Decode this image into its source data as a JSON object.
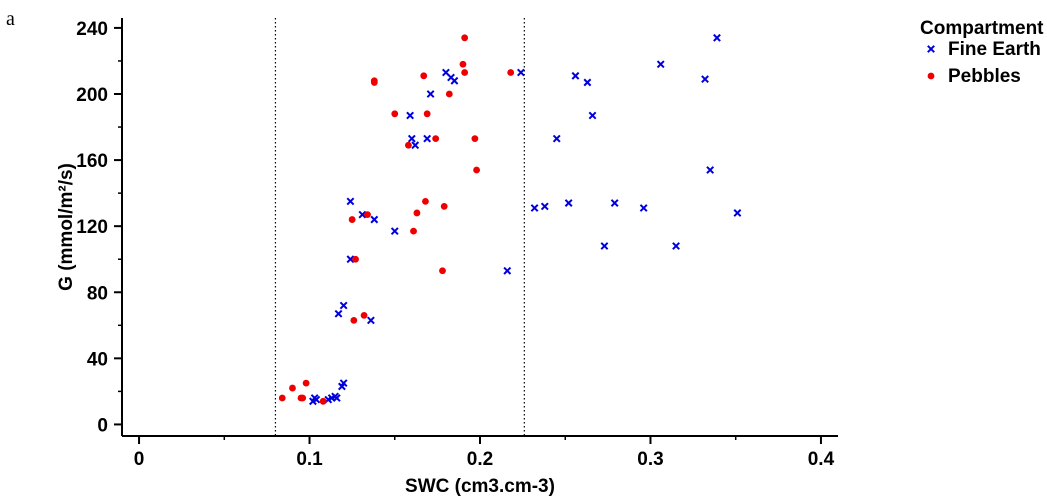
{
  "panel_label": "a",
  "chart_data": {
    "type": "scatter",
    "xlabel": "SWC (cm3.cm-3)",
    "ylabel": "G (mmol/m²/s)",
    "xlim": [
      -0.01,
      0.41
    ],
    "ylim": [
      -7,
      246
    ],
    "x_ticks": [
      0,
      0.1,
      0.2,
      0.3,
      0.4
    ],
    "x_tick_labels": [
      "0",
      "0.1",
      "0.2",
      "0.3",
      "0.4"
    ],
    "y_ticks": [
      0,
      40,
      80,
      120,
      160,
      200,
      240
    ],
    "y_tick_labels": [
      "0",
      "40",
      "80",
      "120",
      "160",
      "200",
      "240"
    ],
    "grid": false,
    "reference_lines_x": [
      0.08,
      0.226
    ],
    "legend_title": "Compartment",
    "legend_position": "top-right",
    "colors": {
      "fine_earth": "#0000dd",
      "pebbles": "#ee0000"
    },
    "series": [
      {
        "name": "Fine Earth",
        "marker": "x",
        "points": [
          [
            0.102,
            14
          ],
          [
            0.103,
            16
          ],
          [
            0.104,
            15
          ],
          [
            0.111,
            15
          ],
          [
            0.113,
            16
          ],
          [
            0.115,
            17
          ],
          [
            0.116,
            16
          ],
          [
            0.119,
            23
          ],
          [
            0.12,
            25
          ],
          [
            0.117,
            67
          ],
          [
            0.12,
            72
          ],
          [
            0.124,
            100
          ],
          [
            0.124,
            135
          ],
          [
            0.131,
            127
          ],
          [
            0.136,
            63
          ],
          [
            0.138,
            124
          ],
          [
            0.15,
            117
          ],
          [
            0.159,
            187
          ],
          [
            0.16,
            173
          ],
          [
            0.162,
            169
          ],
          [
            0.169,
            173
          ],
          [
            0.171,
            200
          ],
          [
            0.18,
            213
          ],
          [
            0.183,
            210
          ],
          [
            0.185,
            208
          ],
          [
            0.216,
            93
          ],
          [
            0.224,
            213
          ],
          [
            0.232,
            131
          ],
          [
            0.238,
            132
          ],
          [
            0.245,
            173
          ],
          [
            0.252,
            134
          ],
          [
            0.256,
            211
          ],
          [
            0.263,
            207
          ],
          [
            0.266,
            187
          ],
          [
            0.273,
            108
          ],
          [
            0.279,
            134
          ],
          [
            0.296,
            131
          ],
          [
            0.306,
            218
          ],
          [
            0.315,
            108
          ],
          [
            0.332,
            209
          ],
          [
            0.335,
            154
          ],
          [
            0.339,
            234
          ],
          [
            0.351,
            128
          ]
        ]
      },
      {
        "name": "Pebbles",
        "marker": "circle",
        "points": [
          [
            0.084,
            16
          ],
          [
            0.09,
            22
          ],
          [
            0.095,
            16
          ],
          [
            0.096,
            16
          ],
          [
            0.098,
            25
          ],
          [
            0.108,
            14
          ],
          [
            0.125,
            124
          ],
          [
            0.126,
            63
          ],
          [
            0.127,
            100
          ],
          [
            0.132,
            66
          ],
          [
            0.134,
            127
          ],
          [
            0.138,
            208
          ],
          [
            0.138,
            207
          ],
          [
            0.15,
            188
          ],
          [
            0.158,
            169
          ],
          [
            0.161,
            117
          ],
          [
            0.163,
            128
          ],
          [
            0.167,
            211
          ],
          [
            0.168,
            135
          ],
          [
            0.169,
            188
          ],
          [
            0.174,
            173
          ],
          [
            0.178,
            93
          ],
          [
            0.179,
            132
          ],
          [
            0.182,
            200
          ],
          [
            0.19,
            218
          ],
          [
            0.191,
            213
          ],
          [
            0.191,
            234
          ],
          [
            0.197,
            173
          ],
          [
            0.198,
            154
          ],
          [
            0.218,
            213
          ]
        ]
      }
    ]
  }
}
